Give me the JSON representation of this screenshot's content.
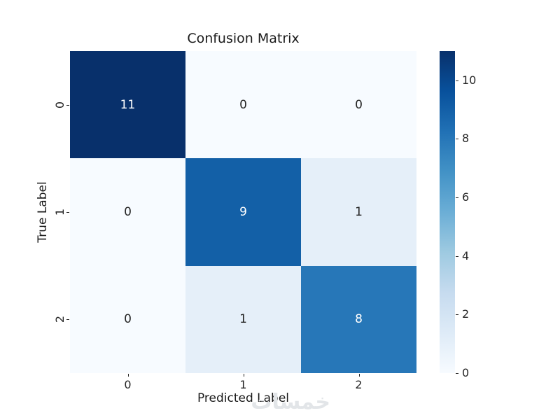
{
  "watermark": "خمسات",
  "chart_data": {
    "type": "heatmap",
    "title": "Confusion Matrix",
    "xlabel": "Predicted Label",
    "ylabel": "True Label",
    "x_tick_labels": [
      "0",
      "1",
      "2"
    ],
    "y_tick_labels": [
      "0",
      "1",
      "2"
    ],
    "matrix": [
      [
        11,
        0,
        0
      ],
      [
        0,
        9,
        1
      ],
      [
        0,
        1,
        8
      ]
    ],
    "vmin": 0,
    "vmax": 11,
    "colorbar_ticks": [
      0,
      2,
      4,
      6,
      8,
      10
    ],
    "colormap": "Blues",
    "colormap_stops": [
      [
        0.0,
        "#f7fbff"
      ],
      [
        0.125,
        "#deebf7"
      ],
      [
        0.25,
        "#c6dbef"
      ],
      [
        0.375,
        "#9ecae1"
      ],
      [
        0.5,
        "#6baed6"
      ],
      [
        0.625,
        "#4292c6"
      ],
      [
        0.75,
        "#2171b5"
      ],
      [
        0.875,
        "#08519c"
      ],
      [
        1.0,
        "#08306b"
      ]
    ],
    "annotation_colors": {
      "light_text": "#ffffff",
      "dark_text": "#262626"
    },
    "grid": false,
    "legend_position": "right-colorbar"
  }
}
